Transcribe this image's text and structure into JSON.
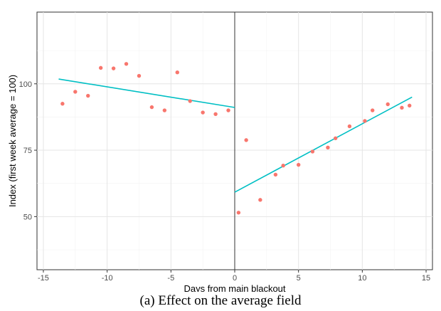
{
  "caption": "(a) Effect on the average field",
  "chart_data": {
    "type": "scatter",
    "xlabel": "Days from main blackout",
    "ylabel": "Index (first week average = 100)",
    "xlim": [
      -15.5,
      15.5
    ],
    "ylim": [
      30,
      127
    ],
    "xticks": [
      -15,
      -10,
      -5,
      0,
      5,
      10,
      15
    ],
    "yticks": [
      50,
      75,
      100
    ],
    "grid": true,
    "cutoff_x": 0,
    "points": {
      "x": [
        -13.5,
        -12.5,
        -11.5,
        -10.5,
        -9.5,
        -8.5,
        -7.5,
        -6.5,
        -5.5,
        -4.5,
        -3.5,
        -2.5,
        -1.5,
        -0.5,
        0.3,
        0.9,
        2.0,
        3.2,
        3.8,
        5.0,
        6.1,
        7.3,
        7.9,
        9.0,
        10.2,
        10.8,
        12.0,
        13.1,
        13.7
      ],
      "y": [
        92.5,
        97,
        95.5,
        106,
        105.8,
        107.5,
        103,
        91.2,
        90,
        104.3,
        93.5,
        89.2,
        88.6,
        90,
        51.5,
        78.8,
        56.3,
        65.8,
        69.2,
        69.5,
        74.5,
        76,
        79.5,
        84,
        86,
        90,
        92.3,
        91,
        91.8
      ],
      "color": "#f8766d"
    },
    "fits": [
      {
        "x": [
          -13.8,
          0
        ],
        "y": [
          101.8,
          91.1
        ],
        "color": "#00bfc4"
      },
      {
        "x": [
          0,
          13.9
        ],
        "y": [
          59.2,
          95
        ],
        "color": "#00bfc4"
      }
    ]
  }
}
